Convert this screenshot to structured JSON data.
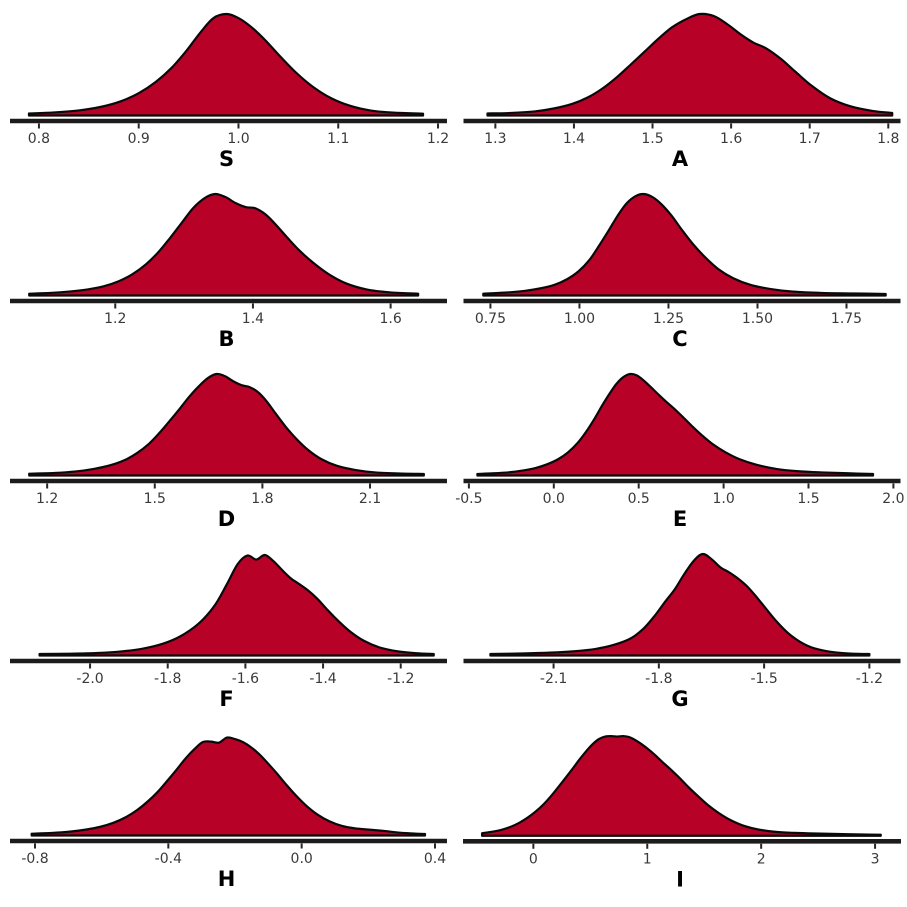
{
  "figure": {
    "type": "kde-ridge-grid",
    "rows": 5,
    "cols": 2,
    "background_color": "#ffffff",
    "fill_color": "#B80126",
    "curve_stroke_color": "#0a0a0a",
    "axis_line_color": "#1c1c1c",
    "tick_mark_color": "#262626",
    "tick_label_color": "#3a3a3a",
    "plot_label_color": "#000000"
  },
  "chart_data": [
    {
      "type": "density",
      "label": "S",
      "xmin": 0.773,
      "xmax": 1.207,
      "ticks": [
        0.8,
        0.9,
        1.0,
        1.1,
        1.2
      ],
      "tick_labels": [
        "0.8",
        "0.9",
        "1.0",
        "1.1",
        "1.2"
      ],
      "peak_x_approx": 0.98,
      "curve": {
        "x": [
          0.79,
          0.815,
          0.84,
          0.862,
          0.882,
          0.9,
          0.917,
          0.933,
          0.948,
          0.962,
          0.975,
          0.988,
          1.0,
          1.013,
          1.027,
          1.042,
          1.058,
          1.075,
          1.093,
          1.112,
          1.132,
          1.155,
          1.185
        ],
        "y": [
          0.02,
          0.03,
          0.05,
          0.085,
          0.14,
          0.22,
          0.33,
          0.47,
          0.64,
          0.82,
          0.96,
          1.0,
          0.96,
          0.87,
          0.74,
          0.58,
          0.42,
          0.28,
          0.17,
          0.095,
          0.05,
          0.028,
          0.018
        ]
      }
    },
    {
      "type": "density",
      "label": "A",
      "xmin": 1.262,
      "xmax": 1.813,
      "ticks": [
        1.3,
        1.4,
        1.5,
        1.6,
        1.7,
        1.8
      ],
      "tick_labels": [
        "1.3",
        "1.4",
        "1.5",
        "1.6",
        "1.7",
        "1.8"
      ],
      "peak_x_approx": 1.56,
      "curve": {
        "x": [
          1.29,
          1.32,
          1.35,
          1.375,
          1.398,
          1.418,
          1.437,
          1.455,
          1.472,
          1.49,
          1.508,
          1.525,
          1.543,
          1.56,
          1.578,
          1.595,
          1.612,
          1.628,
          1.645,
          1.663,
          1.682,
          1.703,
          1.726,
          1.752,
          1.78,
          1.805
        ],
        "y": [
          0.02,
          0.025,
          0.04,
          0.07,
          0.115,
          0.18,
          0.27,
          0.38,
          0.5,
          0.63,
          0.76,
          0.87,
          0.95,
          1.0,
          0.98,
          0.9,
          0.8,
          0.72,
          0.66,
          0.56,
          0.43,
          0.29,
          0.17,
          0.09,
          0.045,
          0.025
        ]
      }
    },
    {
      "type": "density",
      "label": "B",
      "xmin": 1.05,
      "xmax": 1.679,
      "ticks": [
        1.2,
        1.4,
        1.6
      ],
      "tick_labels": [
        "1.2",
        "1.4",
        "1.6"
      ],
      "peak_x_approx": 1.34,
      "curve": {
        "x": [
          1.075,
          1.105,
          1.135,
          1.16,
          1.183,
          1.205,
          1.225,
          1.245,
          1.263,
          1.28,
          1.297,
          1.313,
          1.33,
          1.345,
          1.36,
          1.375,
          1.39,
          1.403,
          1.418,
          1.433,
          1.45,
          1.468,
          1.488,
          1.51,
          1.535,
          1.565,
          1.6,
          1.64
        ],
        "y": [
          0.018,
          0.025,
          0.04,
          0.06,
          0.09,
          0.14,
          0.21,
          0.31,
          0.43,
          0.57,
          0.72,
          0.86,
          0.96,
          1.0,
          0.97,
          0.91,
          0.87,
          0.86,
          0.8,
          0.7,
          0.57,
          0.44,
          0.32,
          0.21,
          0.12,
          0.06,
          0.03,
          0.018
        ]
      }
    },
    {
      "type": "density",
      "label": "C",
      "xmin": 0.68,
      "xmax": 1.896,
      "ticks": [
        0.75,
        1.0,
        1.25,
        1.5,
        1.75
      ],
      "tick_labels": [
        "0.75",
        "1.00",
        "1.25",
        "1.50",
        "1.75"
      ],
      "peak_x_approx": 1.18,
      "curve": {
        "x": [
          0.73,
          0.79,
          0.845,
          0.89,
          0.93,
          0.965,
          0.998,
          1.028,
          1.055,
          1.082,
          1.108,
          1.133,
          1.158,
          1.18,
          1.205,
          1.23,
          1.258,
          1.287,
          1.318,
          1.352,
          1.39,
          1.432,
          1.48,
          1.535,
          1.6,
          1.68,
          1.77,
          1.86
        ],
        "y": [
          0.018,
          0.028,
          0.045,
          0.07,
          0.105,
          0.16,
          0.24,
          0.35,
          0.49,
          0.64,
          0.79,
          0.91,
          0.98,
          1.0,
          0.97,
          0.9,
          0.79,
          0.65,
          0.51,
          0.38,
          0.26,
          0.17,
          0.105,
          0.065,
          0.038,
          0.025,
          0.02,
          0.015
        ]
      }
    },
    {
      "type": "density",
      "label": "D",
      "xmin": 1.102,
      "xmax": 2.309,
      "ticks": [
        1.2,
        1.5,
        1.8,
        2.1
      ],
      "tick_labels": [
        "1.2",
        "1.5",
        "1.8",
        "2.1"
      ],
      "peak_x_approx": 1.7,
      "curve": {
        "x": [
          1.15,
          1.22,
          1.28,
          1.33,
          1.375,
          1.415,
          1.45,
          1.483,
          1.513,
          1.542,
          1.57,
          1.597,
          1.623,
          1.648,
          1.672,
          1.695,
          1.718,
          1.742,
          1.765,
          1.788,
          1.812,
          1.837,
          1.865,
          1.895,
          1.928,
          1.965,
          2.008,
          2.058,
          2.115,
          2.18,
          2.25
        ],
        "y": [
          0.018,
          0.025,
          0.04,
          0.065,
          0.1,
          0.15,
          0.22,
          0.31,
          0.42,
          0.54,
          0.66,
          0.78,
          0.88,
          0.96,
          1.0,
          0.98,
          0.93,
          0.89,
          0.87,
          0.82,
          0.73,
          0.61,
          0.48,
          0.36,
          0.25,
          0.16,
          0.095,
          0.055,
          0.03,
          0.02,
          0.015
        ]
      }
    },
    {
      "type": "density",
      "label": "E",
      "xmin": -0.52,
      "xmax": 2.03,
      "ticks": [
        -0.5,
        0.0,
        0.5,
        1.0,
        1.5,
        2.0
      ],
      "tick_labels": [
        "-0.5",
        "0.0",
        "0.5",
        "1.0",
        "1.5",
        "2.0"
      ],
      "peak_x_approx": 0.45,
      "curve": {
        "x": [
          -0.45,
          -0.35,
          -0.26,
          -0.18,
          -0.105,
          -0.04,
          0.025,
          0.085,
          0.14,
          0.19,
          0.24,
          0.285,
          0.33,
          0.37,
          0.41,
          0.45,
          0.49,
          0.53,
          0.572,
          0.615,
          0.66,
          0.708,
          0.758,
          0.812,
          0.87,
          0.935,
          1.01,
          1.095,
          1.195,
          1.31,
          1.44,
          1.58,
          1.73,
          1.88
        ],
        "y": [
          0.015,
          0.022,
          0.032,
          0.05,
          0.075,
          0.11,
          0.16,
          0.23,
          0.32,
          0.43,
          0.56,
          0.69,
          0.81,
          0.905,
          0.97,
          1.0,
          0.985,
          0.935,
          0.87,
          0.8,
          0.73,
          0.66,
          0.58,
          0.49,
          0.4,
          0.31,
          0.23,
          0.16,
          0.105,
          0.065,
          0.042,
          0.03,
          0.022,
          0.015
        ]
      }
    },
    {
      "type": "density",
      "label": "F",
      "xmin": -2.201,
      "xmax": -1.086,
      "ticks": [
        -2.0,
        -1.8,
        -1.6,
        -1.4,
        -1.2
      ],
      "tick_labels": [
        "-2.0",
        "-1.8",
        "-1.6",
        "-1.4",
        "-1.2"
      ],
      "peak_x_approx": -1.6,
      "curve": {
        "x": [
          -2.13,
          -2.05,
          -1.98,
          -1.92,
          -1.868,
          -1.822,
          -1.78,
          -1.742,
          -1.708,
          -1.676,
          -1.648,
          -1.62,
          -1.595,
          -1.572,
          -1.55,
          -1.528,
          -1.505,
          -1.483,
          -1.462,
          -1.44,
          -1.415,
          -1.39,
          -1.362,
          -1.33,
          -1.295,
          -1.255,
          -1.21,
          -1.16,
          -1.115
        ],
        "y": [
          0.015,
          0.018,
          0.025,
          0.04,
          0.065,
          0.105,
          0.165,
          0.25,
          0.36,
          0.51,
          0.7,
          0.9,
          0.985,
          0.945,
          0.99,
          0.93,
          0.84,
          0.76,
          0.705,
          0.645,
          0.56,
          0.455,
          0.345,
          0.235,
          0.145,
          0.08,
          0.042,
          0.022,
          0.015
        ]
      }
    },
    {
      "type": "density",
      "label": "G",
      "xmin": -2.351,
      "xmax": -1.117,
      "ticks": [
        -2.1,
        -1.8,
        -1.5,
        -1.2
      ],
      "tick_labels": [
        "-2.1",
        "-1.8",
        "-1.5",
        "-1.2"
      ],
      "peak_x_approx": -1.72,
      "curve": {
        "x": [
          -2.28,
          -2.19,
          -2.11,
          -2.04,
          -1.98,
          -1.928,
          -1.882,
          -1.845,
          -1.812,
          -1.782,
          -1.755,
          -1.728,
          -1.7,
          -1.675,
          -1.65,
          -1.625,
          -1.6,
          -1.575,
          -1.548,
          -1.52,
          -1.492,
          -1.463,
          -1.433,
          -1.4,
          -1.365,
          -1.325,
          -1.28,
          -1.23,
          -1.2
        ],
        "y": [
          0.015,
          0.02,
          0.028,
          0.042,
          0.065,
          0.105,
          0.165,
          0.26,
          0.39,
          0.53,
          0.65,
          0.8,
          0.935,
          1.0,
          0.95,
          0.87,
          0.82,
          0.76,
          0.68,
          0.57,
          0.45,
          0.33,
          0.225,
          0.14,
          0.08,
          0.045,
          0.025,
          0.016,
          0.015
        ]
      }
    },
    {
      "type": "density",
      "label": "H",
      "xmin": -0.869,
      "xmax": 0.43,
      "ticks": [
        -0.8,
        -0.4,
        0.0,
        0.4
      ],
      "tick_labels": [
        "-0.8",
        "-0.4",
        "0.0",
        "0.4"
      ],
      "peak_x_approx": -0.24,
      "curve": {
        "x": [
          -0.81,
          -0.75,
          -0.695,
          -0.648,
          -0.605,
          -0.565,
          -0.528,
          -0.494,
          -0.462,
          -0.432,
          -0.403,
          -0.375,
          -0.348,
          -0.322,
          -0.297,
          -0.272,
          -0.248,
          -0.224,
          -0.2,
          -0.176,
          -0.152,
          -0.127,
          -0.101,
          -0.074,
          -0.046,
          -0.016,
          0.015,
          0.048,
          0.083,
          0.12,
          0.16,
          0.202,
          0.247,
          0.295,
          0.345,
          0.37
        ],
        "y": [
          0.018,
          0.025,
          0.038,
          0.058,
          0.085,
          0.125,
          0.18,
          0.25,
          0.335,
          0.43,
          0.54,
          0.65,
          0.76,
          0.85,
          0.92,
          0.925,
          0.915,
          0.965,
          0.95,
          0.92,
          0.87,
          0.8,
          0.71,
          0.61,
          0.5,
          0.39,
          0.29,
          0.205,
          0.14,
          0.095,
          0.07,
          0.058,
          0.045,
          0.028,
          0.018,
          0.015
        ]
      }
    },
    {
      "type": "density",
      "label": "I",
      "xmin": -0.6,
      "xmax": 3.21,
      "ticks": [
        0,
        1,
        2,
        3
      ],
      "tick_labels": [
        "0",
        "1",
        "2",
        "3"
      ],
      "peak_x_approx": 0.72,
      "curve": {
        "x": [
          -0.45,
          -0.36,
          -0.275,
          -0.195,
          -0.12,
          -0.048,
          0.022,
          0.09,
          0.155,
          0.22,
          0.283,
          0.345,
          0.405,
          0.463,
          0.52,
          0.575,
          0.63,
          0.683,
          0.735,
          0.788,
          0.84,
          0.895,
          0.95,
          1.01,
          1.072,
          1.138,
          1.208,
          1.282,
          1.36,
          1.445,
          1.535,
          1.632,
          1.738,
          1.855,
          1.985,
          2.13,
          2.29,
          2.47,
          2.67,
          2.89,
          3.05
        ],
        "y": [
          0.025,
          0.04,
          0.06,
          0.09,
          0.13,
          0.18,
          0.24,
          0.31,
          0.39,
          0.48,
          0.57,
          0.66,
          0.75,
          0.83,
          0.9,
          0.95,
          0.975,
          0.98,
          0.975,
          0.98,
          0.97,
          0.94,
          0.9,
          0.85,
          0.79,
          0.72,
          0.65,
          0.57,
          0.48,
          0.39,
          0.3,
          0.22,
          0.15,
          0.095,
          0.06,
          0.038,
          0.028,
          0.022,
          0.018,
          0.012,
          0.01
        ]
      }
    }
  ]
}
